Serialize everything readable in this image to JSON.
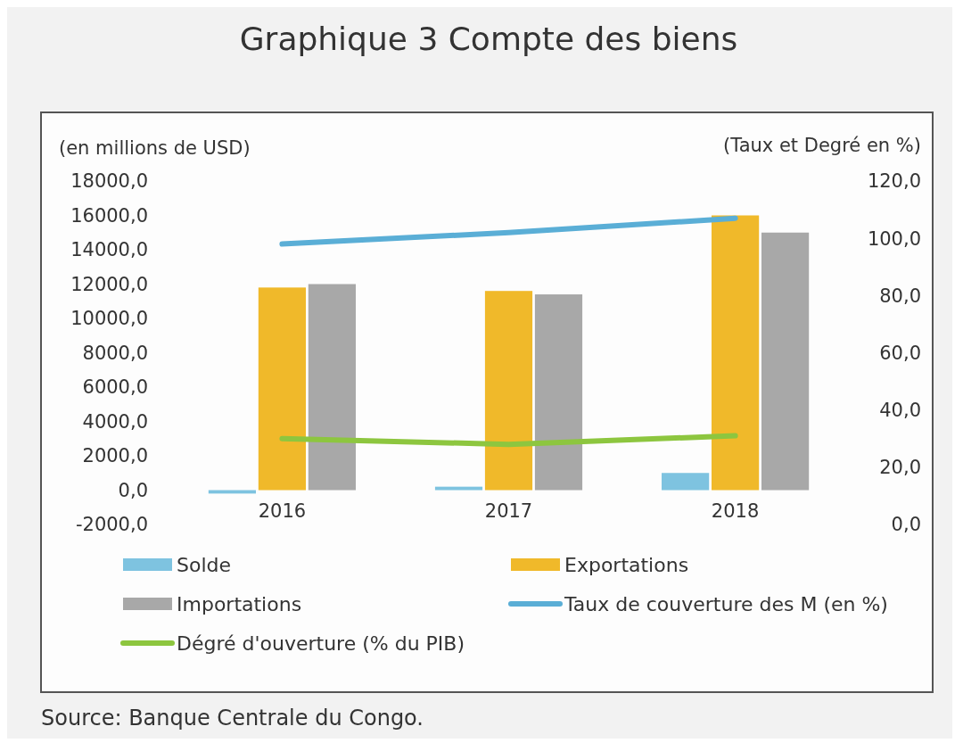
{
  "chart_data": {
    "type": "bar",
    "title": "Graphique 3 Compte des biens",
    "ylabel": "(en millions de USD)",
    "y2label": "(Taux et Degré en %)",
    "categories": [
      "2016",
      "2017",
      "2018"
    ],
    "series": [
      {
        "name": "Solde",
        "color": "#7ec3e0",
        "values": [
          -200,
          200,
          1000
        ]
      },
      {
        "name": "Exportations",
        "color": "#f0b92a",
        "values": [
          11800,
          11600,
          16000
        ]
      },
      {
        "name": "Importations",
        "color": "#a8a8a8",
        "values": [
          12000,
          11400,
          15000
        ]
      },
      {
        "name": "Taux de couverture des M (en %)",
        "type": "line",
        "axis": "y2",
        "color": "#5aaed6",
        "values": [
          98,
          102,
          107
        ]
      },
      {
        "name": "Dégré d'ouverture (% du PIB)",
        "type": "line",
        "axis": "y2",
        "color": "#8dc63f",
        "values": [
          30,
          28,
          31
        ]
      }
    ],
    "ylim": [
      -2000,
      18000
    ],
    "yticks": [
      {
        "value": -2000,
        "label": "-2000,0"
      },
      {
        "value": 0,
        "label": "0,0"
      },
      {
        "value": 2000,
        "label": "2000,0"
      },
      {
        "value": 4000,
        "label": "4000,0"
      },
      {
        "value": 6000,
        "label": "6000,0"
      },
      {
        "value": 8000,
        "label": "8000,0"
      },
      {
        "value": 10000,
        "label": "10000,0"
      },
      {
        "value": 12000,
        "label": "12000,0"
      },
      {
        "value": 14000,
        "label": "14000,0"
      },
      {
        "value": 16000,
        "label": "16000,0"
      },
      {
        "value": 18000,
        "label": "18000,0"
      }
    ],
    "y2lim": [
      0,
      120
    ],
    "y2ticks": [
      {
        "value": 0,
        "label": "0,0"
      },
      {
        "value": 20,
        "label": "20,0"
      },
      {
        "value": 40,
        "label": "40,0"
      },
      {
        "value": 60,
        "label": "60,0"
      },
      {
        "value": 80,
        "label": "80,0"
      },
      {
        "value": 100,
        "label": "100,0"
      },
      {
        "value": 120,
        "label": "120,0"
      }
    ],
    "legend": "bottom",
    "annotations": [
      "Source: Banque Centrale du Congo."
    ]
  }
}
